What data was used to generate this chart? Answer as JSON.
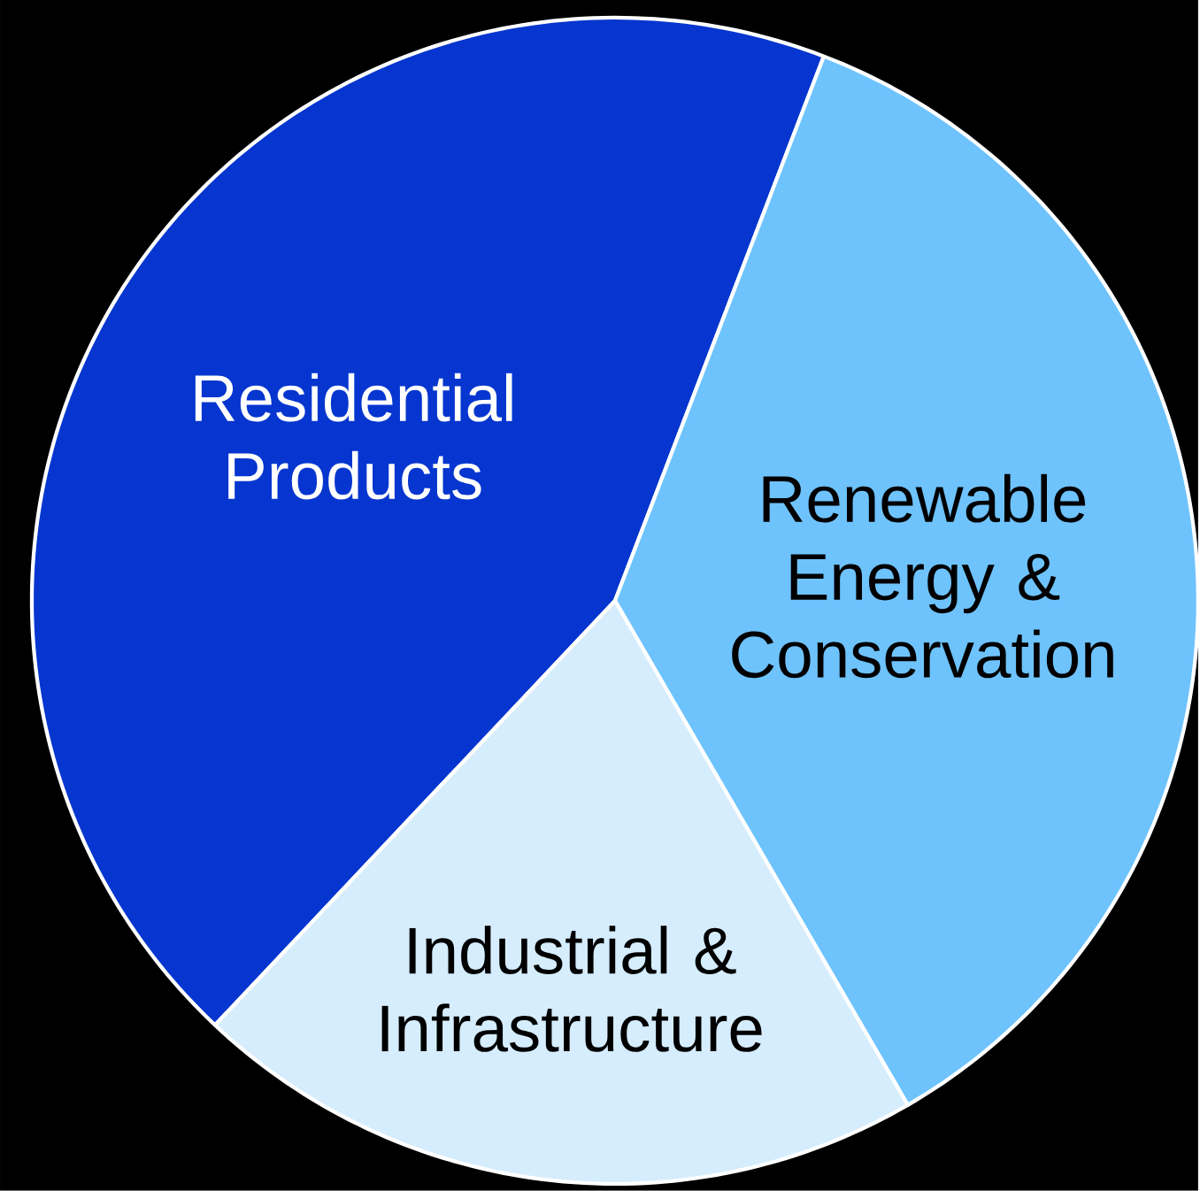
{
  "chart_data": {
    "type": "pie",
    "categories": [
      "Residential Products",
      "Renewable Energy & Conservation",
      "Industrial & Infrastructure"
    ],
    "values": [
      43.8,
      35.8,
      20.4
    ],
    "colors": [
      "#0636cf",
      "#6ec3fd",
      "#d5edfd"
    ]
  }
}
